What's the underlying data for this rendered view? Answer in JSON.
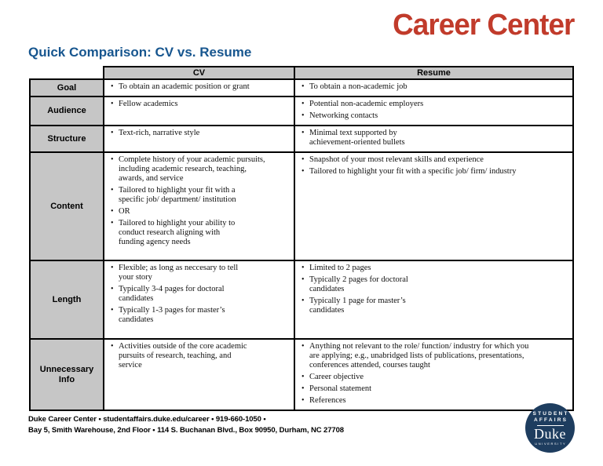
{
  "page": {
    "brand": "Career Center",
    "title": "Quick Comparison: CV vs. Resume"
  },
  "colors": {
    "brand_red": "#c13b2b",
    "title_blue": "#17568f",
    "table_header_gray": "#c6c6c6",
    "logo_navy": "#1e3d5f"
  },
  "table": {
    "columns": [
      "",
      "CV",
      "Resume"
    ],
    "rows": [
      {
        "label": "Goal",
        "cv": [
          "To obtain an academic position or grant"
        ],
        "resume": [
          "To obtain a non-academic job"
        ]
      },
      {
        "label": "Audience",
        "cv": [
          "Fellow academics"
        ],
        "resume": [
          "Potential non-academic employers",
          "Networking contacts"
        ]
      },
      {
        "label": "Structure",
        "cv": [
          "Text-rich, narrative style"
        ],
        "resume": [
          "Minimal text supported by\nachievement-oriented bullets"
        ]
      },
      {
        "label": "Content",
        "cv": [
          "Complete history of your academic pursuits,\nincluding academic research, teaching,\nawards, and service",
          "Tailored to highlight your fit with a\nspecific job/ department/ institution",
          "OR",
          "Tailored to highlight your ability to\nconduct research aligning with\nfunding agency needs"
        ],
        "resume": [
          "Snapshot of your most relevant skills and experience",
          "Tailored to highlight your fit with a specific job/ firm/ industry"
        ]
      },
      {
        "label": "Length",
        "cv": [
          "Flexible; as long as neccesary to tell\nyour story",
          "Typically 3-4 pages for doctoral\ncandidates",
          "Typically 1-3 pages for master’s\ncandidates"
        ],
        "resume": [
          "Limited to 2 pages",
          "Typically 2 pages for doctoral\ncandidates",
          "Typically 1 page for master’s\ncandidates"
        ]
      },
      {
        "label": "Unnecessary Info",
        "cv": [
          "Activities outside of the core academic\npursuits of research, teaching, and\nservice"
        ],
        "resume": [
          "Anything not relevant to the role/ function/ industry for which you\nare applying; e.g., unabridged lists of publications, presentations,\nconferences attended, courses taught",
          "Career objective",
          "Personal statement",
          "References"
        ]
      }
    ]
  },
  "footer": {
    "line1": "Duke Career Center • studentaffairs.duke.edu/career • 919-660-1050 •",
    "line2": "Bay 5, Smith Warehouse, 2nd Floor • 114 S. Buchanan Blvd., Box 90950, Durham, NC 27708"
  },
  "logo": {
    "student": "STUDENT",
    "affairs": "AFFAIRS",
    "duke": "Duke",
    "university": "UNIVERSITY"
  }
}
